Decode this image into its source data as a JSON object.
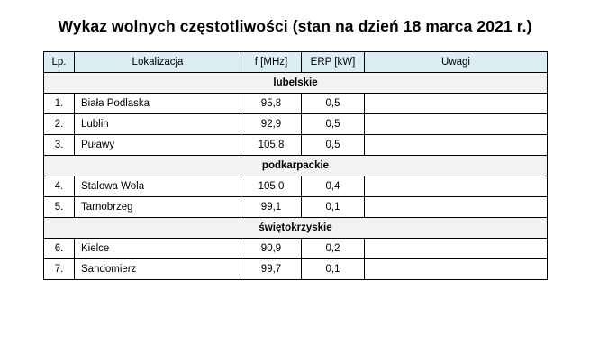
{
  "title": "Wykaz wolnych częstotliwości (stan na dzień 18 marca 2021 r.)",
  "headers": {
    "lp": "Lp.",
    "location": "Lokalizacja",
    "freq": "f [MHz]",
    "erp": "ERP [kW]",
    "notes": "Uwagi"
  },
  "groups": [
    {
      "name": "lubelskie",
      "rows": [
        {
          "lp": "1.",
          "location": "Biała Podlaska",
          "freq": "95,8",
          "erp": "0,5",
          "notes": ""
        },
        {
          "lp": "2.",
          "location": "Lublin",
          "freq": "92,9",
          "erp": "0,5",
          "notes": ""
        },
        {
          "lp": "3.",
          "location": "Puławy",
          "freq": "105,8",
          "erp": "0,5",
          "notes": ""
        }
      ]
    },
    {
      "name": "podkarpackie",
      "rows": [
        {
          "lp": "4.",
          "location": "Stalowa Wola",
          "freq": "105,0",
          "erp": "0,4",
          "notes": ""
        },
        {
          "lp": "5.",
          "location": "Tarnobrzeg",
          "freq": "99,1",
          "erp": "0,1",
          "notes": ""
        }
      ]
    },
    {
      "name": "świętokrzyskie",
      "rows": [
        {
          "lp": "6.",
          "location": "Kielce",
          "freq": "90,9",
          "erp": "0,2",
          "notes": ""
        },
        {
          "lp": "7.",
          "location": "Sandomierz",
          "freq": "99,7",
          "erp": "0,1",
          "notes": ""
        }
      ]
    }
  ]
}
